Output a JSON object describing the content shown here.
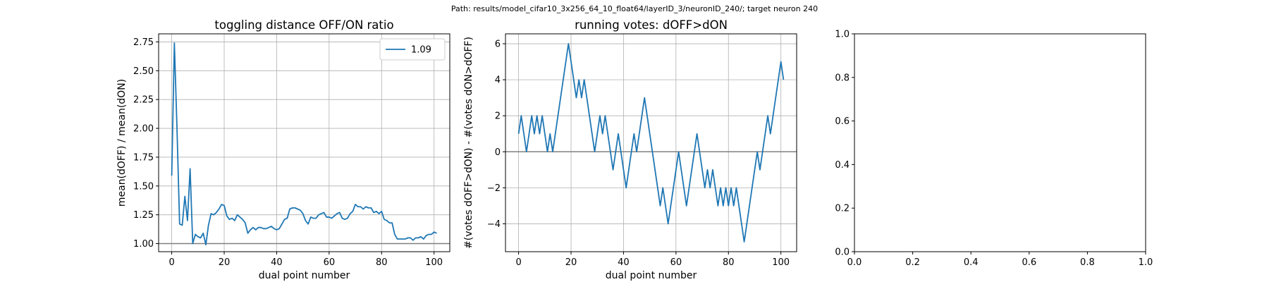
{
  "suptitle": "Path: results/model_cifar10_3x256_64_10_float64/layerID_3/neuronID_240/; target neuron 240",
  "colors": {
    "series": "#1f77b4",
    "grid": "#b0b0b0",
    "hline": "#808080",
    "axis": "#000000"
  },
  "chart_data": [
    {
      "type": "line",
      "title": "toggling distance OFF/ON ratio",
      "xlabel": "dual point number",
      "ylabel": "mean(dOFF) / mean(dON)",
      "xlim": [
        -5,
        106
      ],
      "ylim": [
        0.93,
        2.82
      ],
      "xticks": [
        0,
        20,
        40,
        60,
        80,
        100
      ],
      "xtick_labels": [
        "0",
        "20",
        "40",
        "60",
        "80",
        "100"
      ],
      "yticks": [
        1.0,
        1.25,
        1.5,
        1.75,
        2.0,
        2.25,
        2.5,
        2.75
      ],
      "ytick_labels": [
        "1.00",
        "1.25",
        "1.50",
        "1.75",
        "2.00",
        "2.25",
        "2.50",
        "2.75"
      ],
      "grid": true,
      "hline": 1.0,
      "legend": {
        "position": "upper right",
        "entries": [
          "1.09"
        ]
      },
      "series": [
        {
          "name": "1.09",
          "x": [
            0,
            1,
            2,
            3,
            4,
            5,
            6,
            7,
            8,
            9,
            10,
            11,
            12,
            13,
            14,
            15,
            16,
            17,
            18,
            19,
            20,
            21,
            22,
            23,
            24,
            25,
            26,
            27,
            28,
            29,
            30,
            31,
            32,
            33,
            34,
            35,
            36,
            37,
            38,
            39,
            40,
            41,
            42,
            43,
            44,
            45,
            46,
            47,
            48,
            49,
            50,
            51,
            52,
            53,
            54,
            55,
            56,
            57,
            58,
            59,
            60,
            61,
            62,
            63,
            64,
            65,
            66,
            67,
            68,
            69,
            70,
            71,
            72,
            73,
            74,
            75,
            76,
            77,
            78,
            79,
            80,
            81,
            82,
            83,
            84,
            85,
            86,
            87,
            88,
            89,
            90,
            91,
            92,
            93,
            94,
            95,
            96,
            97,
            98,
            99,
            100,
            101
          ],
          "y": [
            1.59,
            2.74,
            2.0,
            1.17,
            1.16,
            1.41,
            1.2,
            1.65,
            1.0,
            1.08,
            1.06,
            1.05,
            1.09,
            0.99,
            1.16,
            1.26,
            1.25,
            1.27,
            1.3,
            1.34,
            1.33,
            1.24,
            1.21,
            1.22,
            1.2,
            1.25,
            1.23,
            1.21,
            1.18,
            1.09,
            1.12,
            1.14,
            1.12,
            1.14,
            1.14,
            1.13,
            1.13,
            1.14,
            1.15,
            1.13,
            1.12,
            1.13,
            1.17,
            1.21,
            1.22,
            1.3,
            1.31,
            1.31,
            1.3,
            1.29,
            1.26,
            1.2,
            1.17,
            1.23,
            1.22,
            1.22,
            1.25,
            1.26,
            1.27,
            1.23,
            1.23,
            1.22,
            1.24,
            1.26,
            1.27,
            1.22,
            1.21,
            1.22,
            1.26,
            1.28,
            1.34,
            1.32,
            1.32,
            1.3,
            1.32,
            1.31,
            1.31,
            1.27,
            1.28,
            1.26,
            1.28,
            1.21,
            1.2,
            1.18,
            1.18,
            1.08,
            1.04,
            1.04,
            1.04,
            1.04,
            1.05,
            1.05,
            1.03,
            1.05,
            1.05,
            1.06,
            1.04,
            1.07,
            1.08,
            1.08,
            1.1,
            1.09
          ]
        }
      ]
    },
    {
      "type": "line",
      "title": "running votes: dOFF>dON",
      "xlabel": "dual point number",
      "ylabel": "#(votes dOFF>dON) - #(votes dON>dOFF)",
      "xlim": [
        -5,
        106
      ],
      "ylim": [
        -5.55,
        6.55
      ],
      "xticks": [
        0,
        20,
        40,
        60,
        80,
        100
      ],
      "xtick_labels": [
        "0",
        "20",
        "40",
        "60",
        "80",
        "100"
      ],
      "yticks": [
        -4,
        -2,
        0,
        2,
        4,
        6
      ],
      "ytick_labels": [
        "−4",
        "−2",
        "0",
        "2",
        "4",
        "6"
      ],
      "grid": true,
      "hline": 0,
      "series": [
        {
          "x": [
            0,
            1,
            2,
            3,
            4,
            5,
            6,
            7,
            8,
            9,
            10,
            11,
            12,
            13,
            14,
            15,
            16,
            17,
            18,
            19,
            20,
            21,
            22,
            23,
            24,
            25,
            26,
            27,
            28,
            29,
            30,
            31,
            32,
            33,
            34,
            35,
            36,
            37,
            38,
            39,
            40,
            41,
            42,
            43,
            44,
            45,
            46,
            47,
            48,
            49,
            50,
            51,
            52,
            53,
            54,
            55,
            56,
            57,
            58,
            59,
            60,
            61,
            62,
            63,
            64,
            65,
            66,
            67,
            68,
            69,
            70,
            71,
            72,
            73,
            74,
            75,
            76,
            77,
            78,
            79,
            80,
            81,
            82,
            83,
            84,
            85,
            86,
            87,
            88,
            89,
            90,
            91,
            92,
            93,
            94,
            95,
            96,
            97,
            98,
            99,
            100,
            101
          ],
          "y": [
            1,
            2,
            1,
            0,
            1,
            2,
            1,
            2,
            1,
            2,
            1,
            0,
            1,
            0,
            1,
            2,
            3,
            4,
            5,
            6,
            5,
            4,
            3,
            4,
            3,
            4,
            3,
            2,
            1,
            0,
            1,
            2,
            1,
            2,
            1,
            0,
            -1,
            0,
            1,
            0,
            -1,
            -2,
            -1,
            0,
            1,
            0,
            1,
            2,
            3,
            2,
            1,
            0,
            -1,
            -2,
            -3,
            -2,
            -3,
            -4,
            -3,
            -2,
            -1,
            0,
            -1,
            -2,
            -3,
            -2,
            -1,
            0,
            1,
            0,
            -1,
            -2,
            -1,
            -2,
            -1,
            -2,
            -3,
            -2,
            -3,
            -2,
            -3,
            -2,
            -3,
            -2,
            -3,
            -4,
            -5,
            -4,
            -3,
            -2,
            -1,
            0,
            -1,
            0,
            1,
            2,
            1,
            2,
            3,
            4,
            5,
            4
          ]
        }
      ]
    },
    {
      "type": "line",
      "title": "",
      "xlabel": "",
      "ylabel": "",
      "xlim": [
        0,
        1
      ],
      "ylim": [
        0,
        1
      ],
      "xticks": [
        0,
        0.2,
        0.4,
        0.6,
        0.8,
        1.0
      ],
      "xtick_labels": [
        "0.0",
        "0.2",
        "0.4",
        "0.6",
        "0.8",
        "1.0"
      ],
      "yticks": [
        0,
        0.2,
        0.4,
        0.6,
        0.8,
        1.0
      ],
      "ytick_labels": [
        "0.0",
        "0.2",
        "0.4",
        "0.6",
        "0.8",
        "1.0"
      ],
      "grid": false,
      "series": []
    }
  ]
}
